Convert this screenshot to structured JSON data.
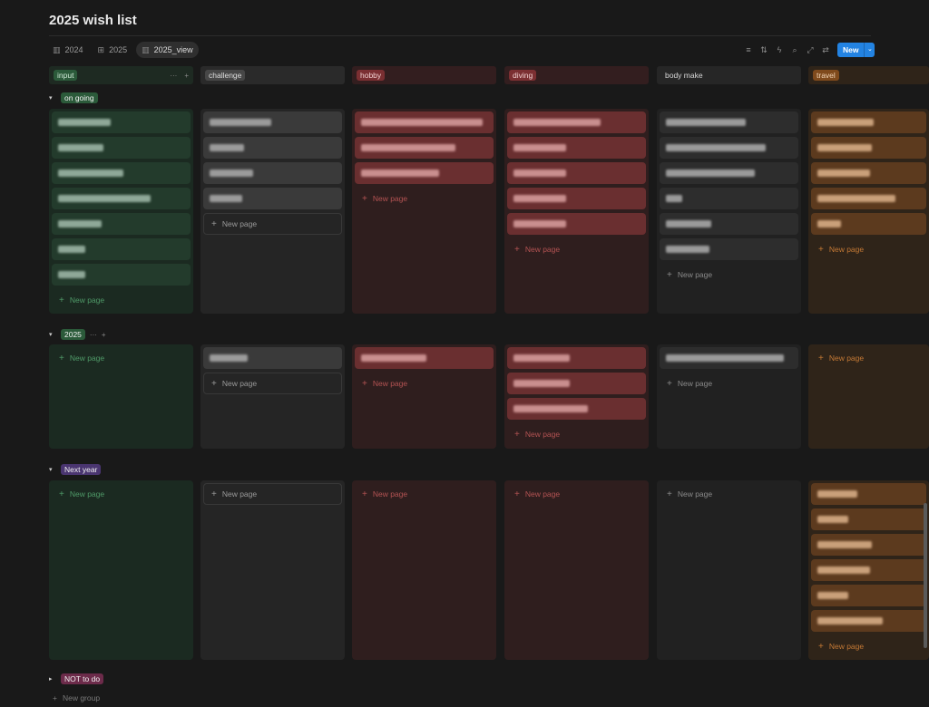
{
  "page": {
    "title": "2025 wish list"
  },
  "views": [
    {
      "label": "2024",
      "icon": "board-icon",
      "active": false
    },
    {
      "label": "2025",
      "icon": "table-icon",
      "active": false
    },
    {
      "label": "2025_view",
      "icon": "board-icon",
      "active": true
    }
  ],
  "toolbar": {
    "tools": [
      "filter-icon",
      "sort-icon",
      "automation-icon",
      "search-icon",
      "expand-icon",
      "sync-icon"
    ],
    "new_label": "New"
  },
  "labels": {
    "new_page": "New page",
    "new_group": "New group",
    "more": "···",
    "add": "+"
  },
  "columns": [
    {
      "key": "input",
      "label": "input",
      "theme": "green"
    },
    {
      "key": "challenge",
      "label": "challenge",
      "theme": "gray"
    },
    {
      "key": "hobby",
      "label": "hobby",
      "theme": "red"
    },
    {
      "key": "diving",
      "label": "diving",
      "theme": "red"
    },
    {
      "key": "body_make",
      "label": "body make",
      "theme": "plain"
    },
    {
      "key": "travel",
      "label": "travel",
      "theme": "orange"
    }
  ],
  "groups": [
    {
      "label": "on going",
      "theme": "green",
      "collapsed": false,
      "card_counts": [
        7,
        4,
        3,
        5,
        6,
        5
      ]
    },
    {
      "label": "2025",
      "theme": "green",
      "collapsed": false,
      "card_counts": [
        0,
        1,
        1,
        3,
        1,
        0
      ]
    },
    {
      "label": "Next year",
      "theme": "purple",
      "collapsed": false,
      "card_counts": [
        0,
        0,
        0,
        0,
        0,
        6
      ]
    },
    {
      "label": "NOT to do",
      "theme": "pink",
      "collapsed": true,
      "card_counts": []
    }
  ],
  "colors": {
    "accent_blue": "#2383e2",
    "green_cell": "#1b2a21",
    "green_card": "#233b2c",
    "green_text": "#4f9a68",
    "green_pill": "#2b5a3a",
    "gray_cell": "#252525",
    "gray_card": "#3a3a3a",
    "gray_pill": "#474747",
    "red_cell": "#2f1e1e",
    "red_card": "#6a2f30",
    "red_text": "#b45353",
    "red_pill": "#7b2f32",
    "plain_cell": "#212121",
    "plain_card": "#2d2d2d",
    "plain_text": "#8a8a8a",
    "orange_cell": "#2f2419",
    "orange_card": "#5c3a1e",
    "orange_text": "#c47935",
    "orange_pill": "#7f4a1c",
    "purple_pill": "#4a3570",
    "pink_pill": "#6c2b4a"
  }
}
